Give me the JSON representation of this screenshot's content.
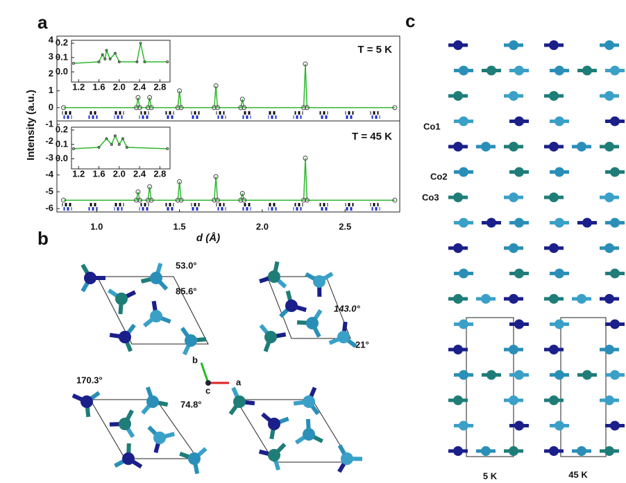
{
  "panel_labels": [
    "a",
    "b",
    "c"
  ],
  "chart_data": [
    {
      "type": "line",
      "xlabel": "d (Å)",
      "ylabel": "Intensity (a.u.)",
      "annotations": [
        "T = 5 K",
        "T = 45 K"
      ],
      "xlim": [
        0.76,
        2.83
      ],
      "ylim": [
        -6.2,
        4.25
      ],
      "xticks": [
        {
          "value": 1,
          "label": "1.0"
        },
        1.5,
        {
          "value": 2,
          "label": "2.0"
        },
        2.5
      ],
      "yticks": [
        4,
        3,
        2,
        1,
        0,
        -1,
        -2,
        -3,
        -4,
        -5,
        -6
      ],
      "x": [
        0.8,
        1.24,
        1.25,
        1.26,
        1.31,
        1.32,
        1.33,
        1.49,
        1.5,
        1.51,
        1.71,
        1.72,
        1.73,
        1.87,
        1.88,
        1.89,
        2.25,
        2.26,
        2.27,
        2.8
      ],
      "series": [
        {
          "name": "5 K",
          "color": "#2db82d",
          "values": [
            0,
            0,
            0.6,
            0,
            0,
            0.6,
            0,
            0,
            1.0,
            0,
            0,
            1.3,
            0,
            0,
            0.5,
            0,
            0,
            2.6,
            0,
            0
          ]
        },
        {
          "name": "45 K",
          "color": "#2db82d",
          "values": [
            -5.5,
            -5.5,
            -5.0,
            -5.5,
            -5.5,
            -4.7,
            -5.5,
            -5.5,
            -4.4,
            -5.5,
            -5.5,
            -4.1,
            -5.5,
            -5.5,
            -5.1,
            -5.5,
            -5.5,
            -3.0,
            -5.5,
            -5.5
          ]
        }
      ]
    },
    {
      "type": "line",
      "xlim": [
        1.06,
        3.0
      ],
      "ylim": [
        -0.07,
        0.22
      ],
      "xticks": [
        1.2,
        1.6,
        {
          "value": 2,
          "label": "2.0"
        },
        2.4,
        2.8
      ],
      "yticks": [
        0.2,
        0.1,
        {
          "value": 0,
          "label": "0.0"
        }
      ],
      "x": [
        1.1,
        1.6,
        1.67,
        1.72,
        1.75,
        1.82,
        1.92,
        2.0,
        2.35,
        2.42,
        2.5,
        2.95
      ],
      "series": [
        {
          "color": "#2db82d",
          "values": [
            0.06,
            0.07,
            0.12,
            0.09,
            0.15,
            0.09,
            0.13,
            0.07,
            0.07,
            0.2,
            0.07,
            0.07
          ]
        }
      ]
    },
    {
      "type": "line",
      "xlim": [
        1.06,
        3.0
      ],
      "ylim": [
        -0.07,
        0.22
      ],
      "xticks": [
        1.2,
        1.6,
        {
          "value": 2,
          "label": "2.0"
        },
        2.4,
        2.8
      ],
      "yticks": [
        0.2,
        0.1,
        {
          "value": 0,
          "label": "0.0"
        }
      ],
      "x": [
        1.1,
        1.6,
        1.75,
        1.85,
        1.92,
        2.0,
        2.07,
        2.15,
        2.95
      ],
      "series": [
        {
          "color": "#2db82d",
          "values": [
            0.07,
            0.08,
            0.14,
            0.1,
            0.16,
            0.1,
            0.14,
            0.08,
            0.07
          ]
        }
      ]
    }
  ],
  "panel_b": {
    "angles": [
      "53.0°",
      "85.6°",
      "143.0°",
      "21°",
      "170.3°",
      "74.8°"
    ],
    "axes": [
      "b",
      "c",
      "a"
    ]
  },
  "panel_c": {
    "atoms": [
      "Co1",
      "Co2",
      "Co3"
    ],
    "temperatures": [
      "5 K",
      "45 K"
    ]
  }
}
